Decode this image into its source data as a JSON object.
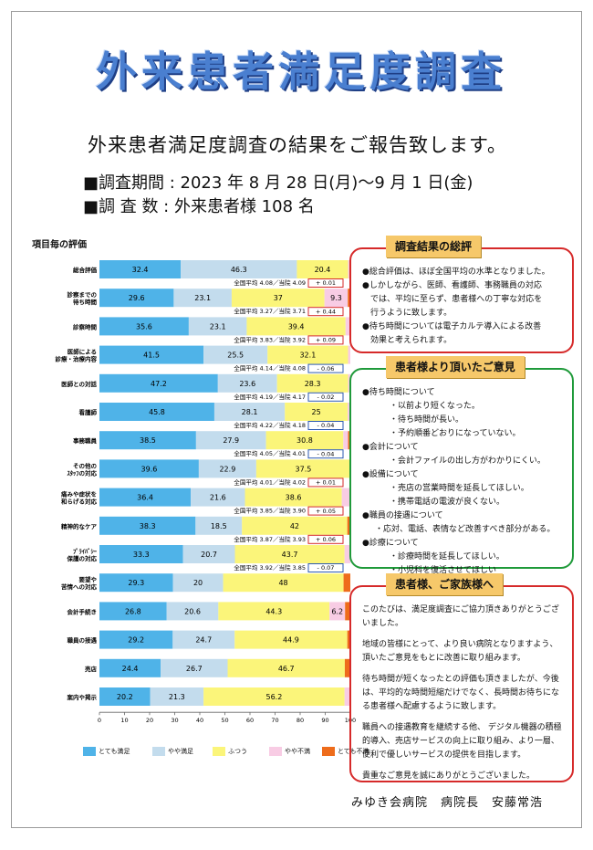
{
  "banner_title": "外来患者満足度調査",
  "subtitle": "外来患者満足度調査の結果をご報告致します。",
  "period_line": "■調査期間 : 2023 年 8 月 28 日(月)～9 月 1 日(金)",
  "count_line": "■調 査 数 : 外来患者様 108 名",
  "chart_heading": "項目毎の評価",
  "colors": {
    "very_satisfied": "#4fb3e8",
    "satisfied": "#c3dced",
    "neutral": "#fbf57a",
    "dissatisfied": "#f8cce4",
    "very_dissatisfied": "#ee6c1b"
  },
  "chart_data": {
    "type": "bar",
    "orientation": "horizontal",
    "stacked": true,
    "xlim": [
      0,
      100
    ],
    "x_ticks": [
      "0",
      "10",
      "20",
      "30",
      "40",
      "50",
      "60",
      "70",
      "80",
      "90",
      "100"
    ],
    "legend": [
      "とても満足",
      "やや満足",
      "ふつう",
      "やや不満",
      "とても不満"
    ],
    "legend_position": "bottom",
    "rows": [
      {
        "name": "総合評価",
        "values": [
          32.4,
          46.3,
          20.4,
          0.9,
          0.0
        ],
        "labels": [
          "32.4",
          "46.3",
          "20.4",
          "",
          ""
        ],
        "note": "全国平均 4.08／当院 4.09",
        "diff": "+ 0.01",
        "diff_color": "#d62a2a"
      },
      {
        "name": "診察までの\n待ち時間",
        "values": [
          29.6,
          23.1,
          37.0,
          9.3,
          1.0
        ],
        "labels": [
          "29.6",
          "23.1",
          "37",
          "9.3",
          ""
        ],
        "note": "全国平均 3.27／当院 3.71",
        "diff": "+ 0.44",
        "diff_color": "#d62a2a"
      },
      {
        "name": "診察時間",
        "values": [
          35.6,
          23.1,
          39.4,
          1.9,
          0.0
        ],
        "labels": [
          "35.6",
          "23.1",
          "39.4",
          "",
          ""
        ],
        "note": "全国平均 3.83／当院 3.92",
        "diff": "+ 0.09",
        "diff_color": "#d62a2a"
      },
      {
        "name": "医師による\n診療・治療内容",
        "values": [
          41.5,
          25.5,
          32.1,
          0.9,
          0.0
        ],
        "labels": [
          "41.5",
          "25.5",
          "32.1",
          "",
          ""
        ],
        "note": "全国平均 4.14／当院 4.08",
        "diff": "- 0.06",
        "diff_color": "#2d5ab0"
      },
      {
        "name": "医師との対話",
        "values": [
          47.2,
          23.6,
          28.3,
          0.9,
          0.0
        ],
        "labels": [
          "47.2",
          "23.6",
          "28.3",
          "",
          ""
        ],
        "note": "全国平均 4.19／当院  4.17",
        "diff": "- 0.02",
        "diff_color": "#2d5ab0"
      },
      {
        "name": "看護師",
        "values": [
          45.8,
          28.1,
          25.0,
          1.1,
          0.0
        ],
        "labels": [
          "45.8",
          "28.1",
          "25",
          "",
          ""
        ],
        "note": "全国平均 4.22／当院 4.18",
        "diff": "- 0.04",
        "diff_color": "#2d5ab0"
      },
      {
        "name": "事務職員",
        "values": [
          38.5,
          27.9,
          30.8,
          1.9,
          0.9
        ],
        "labels": [
          "38.5",
          "27.9",
          "30.8",
          "",
          ""
        ],
        "note": "全国平均 4.05／当院 4.01",
        "diff": "- 0.04",
        "diff_color": "#2d5ab0"
      },
      {
        "name": "その他の\nｽﾀｯﾌの対応",
        "values": [
          39.6,
          22.9,
          37.5,
          0.0,
          0.0
        ],
        "labels": [
          "39.6",
          "22.9",
          "37.5",
          "",
          ""
        ],
        "note": "全国平均 4.01／当院 4.02",
        "diff": "+ 0.01",
        "diff_color": "#d62a2a"
      },
      {
        "name": "痛みや症状を\n和らげる対応",
        "values": [
          36.4,
          21.6,
          38.6,
          3.4,
          0.0
        ],
        "labels": [
          "36.4",
          "21.6",
          "38.6",
          "",
          ""
        ],
        "note": "全国平均 3.85／当院 3.90",
        "diff": "+ 0.05",
        "diff_color": "#d62a2a"
      },
      {
        "name": "精神的なケア",
        "values": [
          38.3,
          18.5,
          42.0,
          0.0,
          1.2
        ],
        "labels": [
          "38.3",
          "18.5",
          "42",
          "",
          ""
        ],
        "note": "全国平均 3.87／当院 3.93",
        "diff": "+ 0.06",
        "diff_color": "#d62a2a"
      },
      {
        "name": "ﾌﾟﾗｲﾊﾞｼｰ\n保護の対応",
        "values": [
          33.3,
          20.7,
          43.7,
          2.3,
          0.0
        ],
        "labels": [
          "33.3",
          "20.7",
          "43.7",
          "",
          ""
        ],
        "note": "全国平均 3.92／当院 3.85",
        "diff": "- 0.07",
        "diff_color": "#2d5ab0"
      },
      {
        "name": "要望や\n苦情への対応",
        "values": [
          29.3,
          20.0,
          48.0,
          0.0,
          2.7
        ],
        "labels": [
          "29.3",
          "20",
          "48",
          "",
          ""
        ],
        "note": "",
        "diff": "",
        "diff_color": ""
      },
      {
        "name": "会計手続き",
        "values": [
          26.8,
          20.6,
          44.3,
          6.2,
          2.1
        ],
        "labels": [
          "26.8",
          "20.6",
          "44.3",
          "6.2",
          ""
        ],
        "note": "",
        "diff": "",
        "diff_color": ""
      },
      {
        "name": "職員の接遇",
        "values": [
          29.2,
          24.7,
          44.9,
          0.0,
          1.2
        ],
        "labels": [
          "29.2",
          "24.7",
          "44.9",
          "",
          ""
        ],
        "note": "",
        "diff": "",
        "diff_color": ""
      },
      {
        "name": "売店",
        "values": [
          24.4,
          26.7,
          46.7,
          0.0,
          2.2
        ],
        "labels": [
          "24.4",
          "26.7",
          "46.7",
          "",
          ""
        ],
        "note": "",
        "diff": "",
        "diff_color": ""
      },
      {
        "name": "案内や掲示",
        "values": [
          20.2,
          21.3,
          56.2,
          2.3,
          0.0
        ],
        "labels": [
          "20.2",
          "21.3",
          "56.2",
          "",
          ""
        ],
        "note": "",
        "diff": "",
        "diff_color": ""
      }
    ]
  },
  "panel_summary": {
    "title": "調査結果の総評",
    "lines": [
      "●総合評価は、ほぼ全国平均の水準となりました。",
      "●しかしながら、医師、看護師、事務職員の対応",
      "　では、平均に至らず、患者様への丁寧な対応を",
      "　行うように致します。",
      "●待ち時間については電子カルテ導入による改善",
      "　効果と考えられます。"
    ]
  },
  "panel_opinions": {
    "title": "患者様より頂いたご意見",
    "items": [
      {
        "text": "●待ち時間について",
        "indent": 0
      },
      {
        "text": "・以前より短くなった。",
        "indent": 2
      },
      {
        "text": "・待ち時間が長い。",
        "indent": 2
      },
      {
        "text": "・予約順番どおりになっていない。",
        "indent": 2
      },
      {
        "text": "●会計について",
        "indent": 0
      },
      {
        "text": "・会計ファイルの出し方がわかりにくい。",
        "indent": 2
      },
      {
        "text": "●設備について",
        "indent": 0
      },
      {
        "text": "・売店の営業時間を延長してほしい。",
        "indent": 2
      },
      {
        "text": "・携帯電話の電波が良くない。",
        "indent": 2
      },
      {
        "text": "●職員の接遇について",
        "indent": 0
      },
      {
        "text": "・応対、電話、表情など改善すべき部分がある。",
        "indent": 1
      },
      {
        "text": "●診療について",
        "indent": 0
      },
      {
        "text": "・診療時間を延長してほしい。",
        "indent": 2
      },
      {
        "text": "・小児科を復活させてほしい",
        "indent": 2
      }
    ]
  },
  "panel_message": {
    "title": "患者様、ご家族様へ",
    "p1": "このたびは、満足度調査にご協力頂きありがとうございました。",
    "p2": "地域の皆様にとって、より良い病院となりますよう、頂いたご意見をもとに改善に取り組みます。",
    "p3": "待ち時間が短くなったとの評価も頂きましたが、今後は、平均的な時間短縮だけでなく、長時間お待ちになる患者様へ配慮するように致します。",
    "p4": "職員への接遇教育を継続する他、 デジタル機器の積極的導入、売店サービスの向上に取り組み、より一層、便利で優しいサービスの提供を目指します。",
    "p5": "貴重なご意見を誠にありがとうございました。"
  },
  "signature": "みゆき会病院　病院長　安藤常浩"
}
